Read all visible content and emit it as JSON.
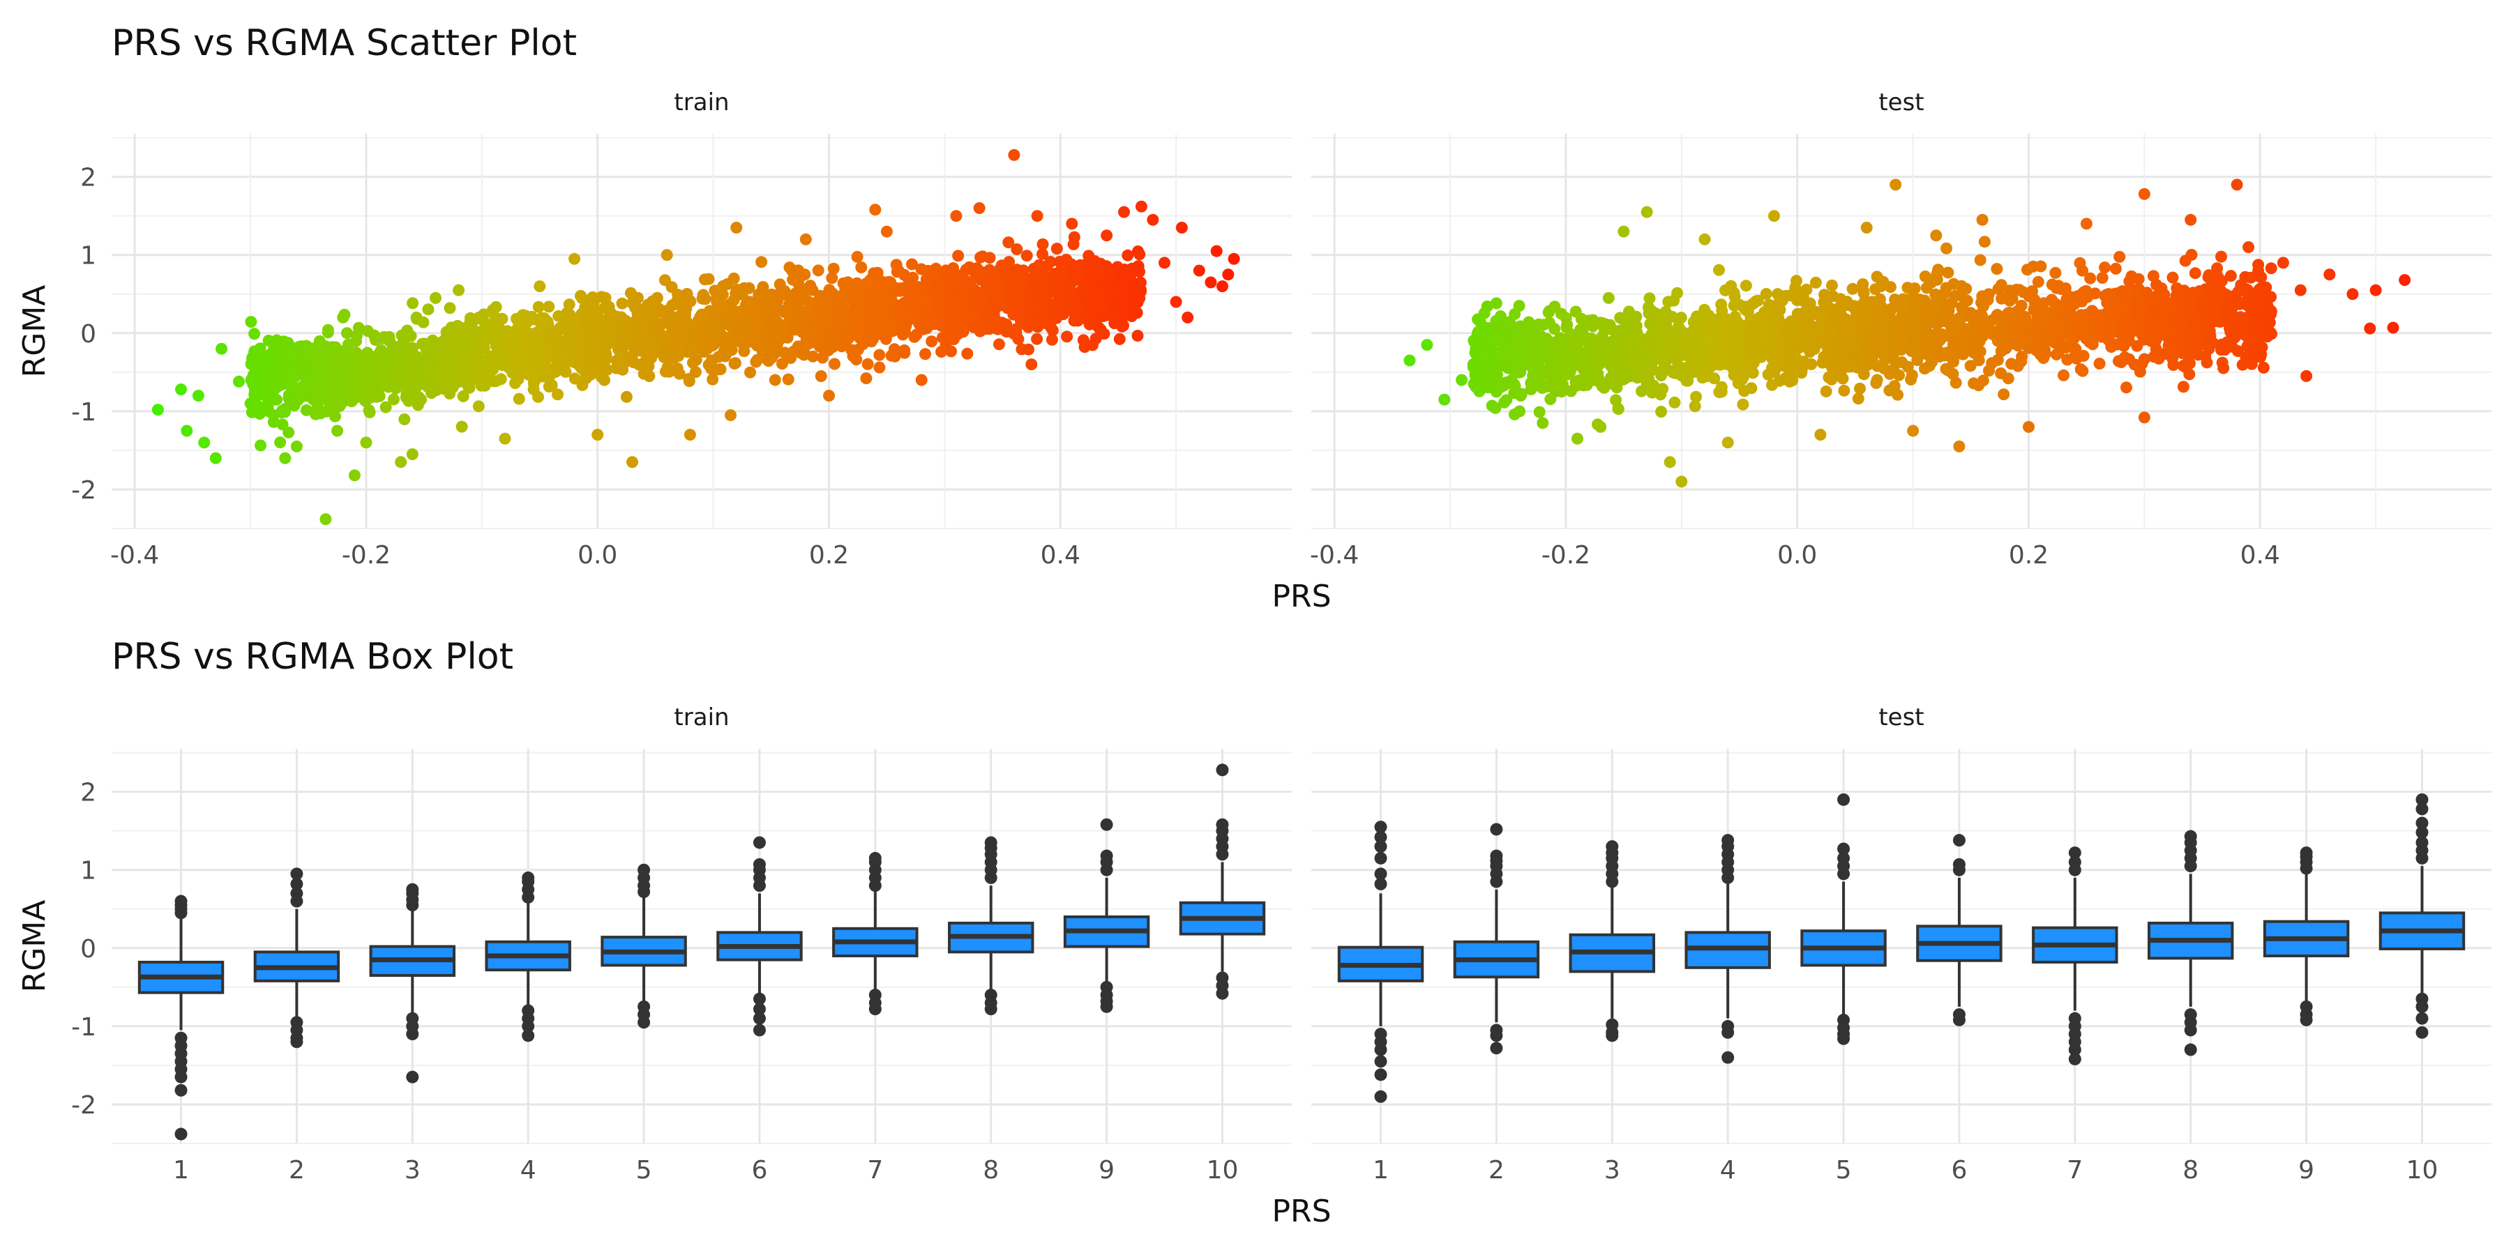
{
  "chart_data": [
    {
      "type": "scatter",
      "title": "PRS vs RGMA Scatter Plot",
      "xlabel": "PRS",
      "ylabel": "RGMA",
      "xlim": [
        -0.42,
        0.6
      ],
      "ylim": [
        -2.5,
        2.55
      ],
      "x_ticks": [
        -0.4,
        -0.2,
        0.0,
        0.2,
        0.4
      ],
      "x_tick_labels": [
        "-0.4",
        "-0.2",
        "0.0",
        "0.2",
        "0.4"
      ],
      "y_ticks": [
        -2,
        -1,
        0,
        1,
        2
      ],
      "y_tick_labels": [
        "-2",
        "-1",
        "0",
        "1",
        "2"
      ],
      "grid": true,
      "color_gradient": [
        "#44ee00",
        "#c4b400",
        "#f06800",
        "#ff1a00"
      ],
      "color_by": "PRS",
      "facets": [
        {
          "label": "train",
          "points": [
            [
              -0.38,
              -0.98
            ],
            [
              -0.36,
              -0.72
            ],
            [
              -0.355,
              -1.25
            ],
            [
              -0.345,
              -0.8
            ],
            [
              -0.34,
              -1.4
            ],
            [
              -0.33,
              -1.6
            ],
            [
              -0.325,
              -0.2
            ],
            [
              -0.31,
              -0.62
            ],
            [
              -0.3,
              -0.9
            ],
            [
              -0.29,
              -0.45
            ],
            [
              -0.28,
              -1.05
            ],
            [
              -0.27,
              -1.6
            ],
            [
              -0.26,
              -1.45
            ],
            [
              -0.25,
              -0.6
            ],
            [
              -0.235,
              -2.38
            ],
            [
              -0.225,
              -1.25
            ],
            [
              -0.22,
              0.2
            ],
            [
              -0.21,
              -1.82
            ],
            [
              -0.2,
              -1.4
            ],
            [
              -0.18,
              -0.05
            ],
            [
              -0.17,
              -1.65
            ],
            [
              -0.16,
              -1.55
            ],
            [
              -0.14,
              0.45
            ],
            [
              -0.12,
              -0.2
            ],
            [
              -0.12,
              0.55
            ],
            [
              -0.08,
              -1.35
            ],
            [
              -0.05,
              0.6
            ],
            [
              -0.02,
              0.95
            ],
            [
              0.0,
              -1.3
            ],
            [
              0.03,
              -1.65
            ],
            [
              0.06,
              1.0
            ],
            [
              0.08,
              -1.3
            ],
            [
              0.12,
              1.35
            ],
            [
              0.115,
              -1.05
            ],
            [
              0.18,
              1.2
            ],
            [
              0.2,
              -0.8
            ],
            [
              0.24,
              1.58
            ],
            [
              0.25,
              1.3
            ],
            [
              0.28,
              -0.6
            ],
            [
              0.31,
              1.5
            ],
            [
              0.33,
              1.6
            ],
            [
              0.36,
              2.28
            ],
            [
              0.375,
              -0.4
            ],
            [
              0.38,
              1.5
            ],
            [
              0.41,
              1.4
            ],
            [
              0.44,
              1.25
            ],
            [
              0.455,
              1.55
            ],
            [
              0.47,
              1.62
            ],
            [
              0.48,
              1.45
            ],
            [
              0.49,
              0.9
            ],
            [
              0.5,
              0.4
            ],
            [
              0.505,
              1.35
            ],
            [
              0.51,
              0.2
            ],
            [
              0.52,
              0.8
            ],
            [
              0.53,
              0.65
            ],
            [
              0.535,
              1.05
            ],
            [
              0.545,
              0.75
            ],
            [
              0.55,
              0.95
            ],
            [
              0.54,
              0.6
            ]
          ],
          "cloud": [
            {
              "x": -0.22,
              "y": -0.55
            },
            {
              "x": -0.15,
              "y": -0.4
            },
            {
              "x": -0.05,
              "y": -0.2
            },
            {
              "x": 0.05,
              "y": 0.0
            },
            {
              "x": 0.15,
              "y": 0.12
            },
            {
              "x": 0.25,
              "y": 0.3
            },
            {
              "x": 0.35,
              "y": 0.45
            },
            {
              "x": 0.42,
              "y": 0.5
            }
          ]
        },
        {
          "label": "test",
          "points": [
            [
              -0.335,
              -0.35
            ],
            [
              -0.32,
              -0.15
            ],
            [
              -0.305,
              -0.85
            ],
            [
              -0.29,
              -0.6
            ],
            [
              -0.28,
              -0.4
            ],
            [
              -0.26,
              -0.75
            ],
            [
              -0.24,
              -1.0
            ],
            [
              -0.22,
              -1.15
            ],
            [
              -0.2,
              -0.5
            ],
            [
              -0.19,
              -1.35
            ],
            [
              -0.17,
              -1.2
            ],
            [
              -0.15,
              1.3
            ],
            [
              -0.13,
              1.55
            ],
            [
              -0.11,
              -1.65
            ],
            [
              -0.1,
              -1.9
            ],
            [
              -0.08,
              1.2
            ],
            [
              -0.06,
              -1.4
            ],
            [
              -0.02,
              1.5
            ],
            [
              0.02,
              -1.3
            ],
            [
              0.06,
              1.35
            ],
            [
              0.085,
              1.9
            ],
            [
              0.1,
              -1.25
            ],
            [
              0.12,
              1.25
            ],
            [
              0.14,
              -1.45
            ],
            [
              0.16,
              1.45
            ],
            [
              0.2,
              -1.2
            ],
            [
              0.25,
              1.4
            ],
            [
              0.3,
              1.78
            ],
            [
              0.3,
              -1.08
            ],
            [
              0.34,
              1.45
            ],
            [
              0.38,
              1.9
            ],
            [
              0.39,
              1.1
            ],
            [
              0.4,
              0.35
            ],
            [
              0.42,
              0.9
            ],
            [
              0.435,
              0.55
            ],
            [
              0.44,
              -0.55
            ],
            [
              0.46,
              0.75
            ],
            [
              0.48,
              0.5
            ],
            [
              0.495,
              0.06
            ],
            [
              0.5,
              0.55
            ],
            [
              0.515,
              0.07
            ],
            [
              0.525,
              0.68
            ]
          ],
          "cloud": [
            {
              "x": -0.2,
              "y": -0.3
            },
            {
              "x": -0.12,
              "y": -0.2
            },
            {
              "x": -0.04,
              "y": -0.12
            },
            {
              "x": 0.04,
              "y": -0.05
            },
            {
              "x": 0.12,
              "y": 0.05
            },
            {
              "x": 0.2,
              "y": 0.1
            },
            {
              "x": 0.28,
              "y": 0.18
            },
            {
              "x": 0.36,
              "y": 0.22
            }
          ]
        }
      ]
    },
    {
      "type": "box",
      "title": "PRS vs RGMA Box Plot",
      "xlabel": "PRS",
      "ylabel": "RGMA",
      "categories": [
        "1",
        "2",
        "3",
        "4",
        "5",
        "6",
        "7",
        "8",
        "9",
        "10"
      ],
      "ylim": [
        -2.5,
        2.55
      ],
      "y_ticks": [
        -2,
        -1,
        0,
        1,
        2
      ],
      "y_tick_labels": [
        "-2",
        "-1",
        "0",
        "1",
        "2"
      ],
      "grid": true,
      "box_color": "#1e90ff",
      "facets": [
        {
          "label": "train",
          "boxes": [
            {
              "whisker_low": -1.05,
              "q1": -0.57,
              "median": -0.37,
              "q3": -0.18,
              "whisker_high": 0.4,
              "outliers": [
                0.45,
                0.5,
                0.55,
                0.6,
                -1.15,
                -1.25,
                -1.35,
                -1.45,
                -1.55,
                -1.65,
                -1.82,
                -2.38
              ]
            },
            {
              "whisker_low": -0.9,
              "q1": -0.42,
              "median": -0.25,
              "q3": -0.05,
              "whisker_high": 0.5,
              "outliers": [
                0.6,
                0.7,
                0.82,
                0.95,
                -0.95,
                -1.05,
                -1.15,
                -1.2
              ]
            },
            {
              "whisker_low": -0.85,
              "q1": -0.35,
              "median": -0.15,
              "q3": 0.02,
              "whisker_high": 0.5,
              "outliers": [
                0.55,
                0.62,
                0.7,
                0.75,
                -0.9,
                -1.0,
                -1.1,
                -1.65
              ]
            },
            {
              "whisker_low": -0.75,
              "q1": -0.28,
              "median": -0.1,
              "q3": 0.08,
              "whisker_high": 0.6,
              "outliers": [
                0.65,
                0.75,
                0.85,
                0.9,
                -0.8,
                -0.9,
                -1.0,
                -1.12
              ]
            },
            {
              "whisker_low": -0.7,
              "q1": -0.22,
              "median": -0.05,
              "q3": 0.14,
              "whisker_high": 0.65,
              "outliers": [
                0.72,
                0.8,
                0.9,
                1.0,
                -0.75,
                -0.85,
                -0.95
              ]
            },
            {
              "whisker_low": -0.6,
              "q1": -0.15,
              "median": 0.02,
              "q3": 0.2,
              "whisker_high": 0.7,
              "outliers": [
                0.8,
                0.9,
                1.0,
                1.07,
                1.35,
                -0.65,
                -0.78,
                -0.9,
                -1.05
              ]
            },
            {
              "whisker_low": -0.55,
              "q1": -0.1,
              "median": 0.08,
              "q3": 0.25,
              "whisker_high": 0.75,
              "outliers": [
                0.8,
                0.9,
                1.0,
                1.1,
                1.15,
                -0.6,
                -0.7,
                -0.78
              ]
            },
            {
              "whisker_low": -0.55,
              "q1": -0.05,
              "median": 0.15,
              "q3": 0.32,
              "whisker_high": 0.8,
              "outliers": [
                0.9,
                1.0,
                1.1,
                1.2,
                1.28,
                1.35,
                -0.6,
                -0.7,
                -0.78
              ]
            },
            {
              "whisker_low": -0.45,
              "q1": 0.02,
              "median": 0.22,
              "q3": 0.4,
              "whisker_high": 0.9,
              "outliers": [
                1.0,
                1.1,
                1.18,
                1.58,
                -0.5,
                -0.6,
                -0.68,
                -0.75
              ]
            },
            {
              "whisker_low": -0.3,
              "q1": 0.18,
              "median": 0.38,
              "q3": 0.58,
              "whisker_high": 1.1,
              "outliers": [
                1.2,
                1.3,
                1.4,
                1.5,
                1.58,
                2.28,
                -0.38,
                -0.48,
                -0.58
              ]
            }
          ]
        },
        {
          "label": "test",
          "boxes": [
            {
              "whisker_low": -1.0,
              "q1": -0.42,
              "median": -0.22,
              "q3": 0.01,
              "whisker_high": 0.7,
              "outliers": [
                0.82,
                0.95,
                1.15,
                1.3,
                1.42,
                1.55,
                -1.1,
                -1.2,
                -1.3,
                -1.45,
                -1.62,
                -1.9
              ]
            },
            {
              "whisker_low": -0.95,
              "q1": -0.37,
              "median": -0.15,
              "q3": 0.08,
              "whisker_high": 0.75,
              "outliers": [
                0.85,
                0.95,
                1.05,
                1.12,
                1.18,
                1.52,
                -1.05,
                -1.12,
                -1.28
              ]
            },
            {
              "whisker_low": -0.9,
              "q1": -0.3,
              "median": -0.05,
              "q3": 0.17,
              "whisker_high": 0.8,
              "outliers": [
                0.85,
                0.95,
                1.05,
                1.15,
                1.22,
                1.3,
                -0.98,
                -1.08,
                -1.12
              ]
            },
            {
              "whisker_low": -0.9,
              "q1": -0.25,
              "median": 0.0,
              "q3": 0.2,
              "whisker_high": 0.85,
              "outliers": [
                0.9,
                1.0,
                1.1,
                1.2,
                1.3,
                1.38,
                -1.0,
                -1.08,
                -1.4
              ]
            },
            {
              "whisker_low": -0.85,
              "q1": -0.22,
              "median": 0.0,
              "q3": 0.22,
              "whisker_high": 0.85,
              "outliers": [
                0.95,
                1.05,
                1.15,
                1.27,
                1.9,
                -0.92,
                -1.02,
                -1.1,
                -1.16
              ]
            },
            {
              "whisker_low": -0.75,
              "q1": -0.16,
              "median": 0.06,
              "q3": 0.28,
              "whisker_high": 0.9,
              "outliers": [
                1.0,
                1.07,
                1.38,
                -0.85,
                -0.92
              ]
            },
            {
              "whisker_low": -0.8,
              "q1": -0.18,
              "median": 0.04,
              "q3": 0.26,
              "whisker_high": 0.9,
              "outliers": [
                1.0,
                1.1,
                1.22,
                -0.9,
                -1.0,
                -1.1,
                -1.2,
                -1.3,
                -1.42
              ]
            },
            {
              "whisker_low": -0.75,
              "q1": -0.13,
              "median": 0.1,
              "q3": 0.32,
              "whisker_high": 0.95,
              "outliers": [
                1.05,
                1.15,
                1.25,
                1.35,
                1.43,
                -0.85,
                -0.95,
                -1.05,
                -1.3
              ]
            },
            {
              "whisker_low": -0.7,
              "q1": -0.1,
              "median": 0.12,
              "q3": 0.34,
              "whisker_high": 0.95,
              "outliers": [
                1.02,
                1.1,
                1.17,
                1.22,
                -0.75,
                -0.85,
                -0.92
              ]
            },
            {
              "whisker_low": -0.6,
              "q1": -0.01,
              "median": 0.22,
              "q3": 0.45,
              "whisker_high": 1.05,
              "outliers": [
                1.15,
                1.25,
                1.35,
                1.48,
                1.6,
                1.78,
                1.9,
                -0.65,
                -0.75,
                -0.9,
                -1.08
              ]
            }
          ]
        }
      ]
    }
  ]
}
